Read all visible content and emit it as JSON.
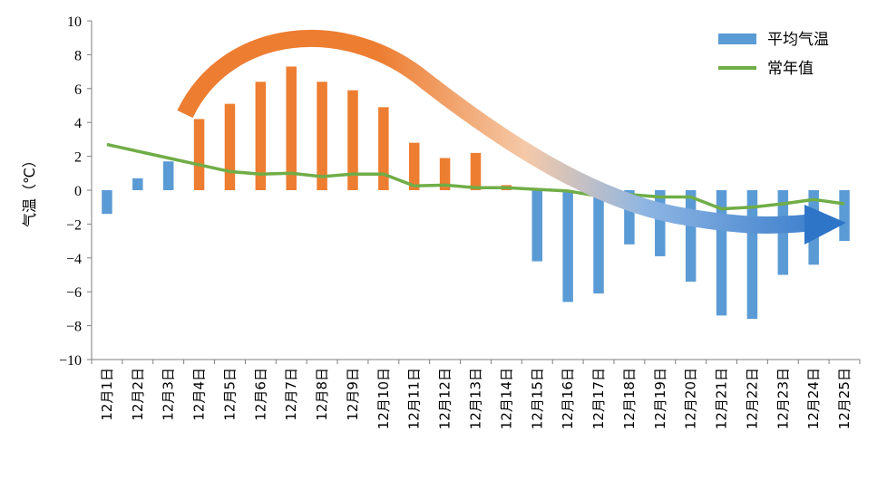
{
  "chart_data": {
    "type": "bar",
    "title": "",
    "xlabel": "",
    "ylabel": "气温（℃）",
    "ylim": [
      -10,
      10
    ],
    "ytick_step": 2,
    "yticks": [
      "10",
      "8",
      "6",
      "4",
      "2",
      "0",
      "−2",
      "−4",
      "−6",
      "−8",
      "−10"
    ],
    "categories": [
      "12月1日",
      "12月2日",
      "12月3日",
      "12月4日",
      "12月5日",
      "12月6日",
      "12月7日",
      "12月8日",
      "12月9日",
      "12月10日",
      "12月11日",
      "12月12日",
      "12月13日",
      "12月14日",
      "12月15日",
      "12月16日",
      "12月17日",
      "12月18日",
      "12月19日",
      "12月20日",
      "12月21日",
      "12月22日",
      "12月23日",
      "12月24日",
      "12月25日"
    ],
    "series": [
      {
        "name": "平均气温",
        "kind": "bar",
        "values": [
          -1.4,
          0.7,
          1.7,
          4.2,
          5.1,
          6.4,
          7.3,
          6.4,
          5.9,
          4.9,
          2.8,
          1.9,
          2.2,
          0.3,
          -4.2,
          -6.6,
          -6.1,
          -3.2,
          -3.9,
          -5.4,
          -7.4,
          -7.6,
          -5.0,
          -4.4,
          -3.0
        ],
        "color": "#5B9BD5",
        "highlight_color": "#ED7D31",
        "highlight_range": [
          3,
          13
        ]
      },
      {
        "name": "常年值",
        "kind": "line",
        "values": [
          2.7,
          2.3,
          1.9,
          1.5,
          1.1,
          0.95,
          1.0,
          0.8,
          0.95,
          0.95,
          0.25,
          0.3,
          0.15,
          0.15,
          0.05,
          -0.05,
          -0.35,
          -0.25,
          -0.4,
          -0.4,
          -1.1,
          -1.0,
          -0.8,
          -0.55,
          -0.8
        ],
        "color": "#70AD47"
      }
    ],
    "legend": {
      "placement": "top-right",
      "entries": [
        "平均气温",
        "常年值"
      ]
    },
    "annotation": {
      "kind": "trend-arrow",
      "from_color": "#ED7D31",
      "to_color": "#5B9BD5",
      "description": "warm-then-cold trend"
    },
    "grid": false
  }
}
